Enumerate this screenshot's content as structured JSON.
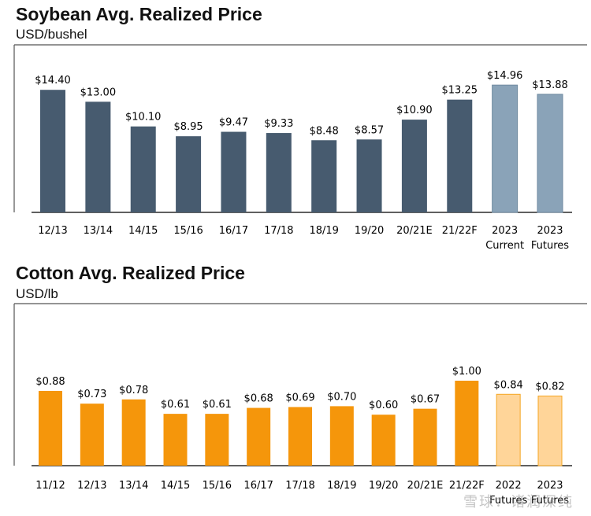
{
  "charts_meta": {
    "soy_color": "#475b6f",
    "soy_future_color": "#8aa3b8",
    "cotton_color": "#f5960b",
    "cotton_future_color": "#ffd599",
    "frame_color": "#555555"
  },
  "watermark": "雪球：诸润深纯",
  "chart_data": [
    {
      "type": "bar",
      "title": "Soybean Avg. Realized Price",
      "subtitle": "USD/bushel",
      "categories": [
        "12/13",
        "13/14",
        "14/15",
        "15/16",
        "16/17",
        "17/18",
        "18/19",
        "19/20",
        "20/21E",
        "21/22F",
        "2023",
        "2023"
      ],
      "values": [
        14.4,
        13.0,
        10.1,
        8.95,
        9.47,
        9.33,
        8.48,
        8.57,
        10.9,
        13.25,
        14.96,
        13.88
      ],
      "labels": [
        "$14.40",
        "$13.00",
        "$10.10",
        "$8.95",
        "$9.47",
        "$9.33",
        "$8.48",
        "$8.57",
        "$10.90",
        "$13.25",
        "$14.96",
        "$13.88"
      ],
      "future": [
        false,
        false,
        false,
        false,
        false,
        false,
        false,
        false,
        false,
        false,
        true,
        true
      ],
      "sublabels": [
        "",
        "",
        "",
        "",
        "",
        "",
        "",
        "",
        "",
        "",
        "Current",
        "Futures"
      ],
      "ylim": [
        0,
        16.5
      ],
      "xlabel": "",
      "ylabel": ""
    },
    {
      "type": "bar",
      "title": "Cotton Avg. Realized Price",
      "subtitle": "USD/lb",
      "categories": [
        "11/12",
        "12/13",
        "13/14",
        "14/15",
        "15/16",
        "16/17",
        "17/18",
        "18/19",
        "19/20",
        "20/21E",
        "21/22F",
        "2022",
        "2023"
      ],
      "values": [
        0.88,
        0.73,
        0.78,
        0.61,
        0.61,
        0.68,
        0.69,
        0.7,
        0.6,
        0.67,
        1.0,
        0.84,
        0.82
      ],
      "labels": [
        "$0.88",
        "$0.73",
        "$0.78",
        "$0.61",
        "$0.61",
        "$0.68",
        "$0.69",
        "$0.70",
        "$0.60",
        "$0.67",
        "$1.00",
        "$0.84",
        "$0.82"
      ],
      "future": [
        false,
        false,
        false,
        false,
        false,
        false,
        false,
        false,
        false,
        false,
        false,
        true,
        true
      ],
      "sublabels": [
        "",
        "",
        "",
        "",
        "",
        "",
        "",
        "",
        "",
        "",
        "",
        "Futures",
        "Futures"
      ],
      "ylim": [
        0,
        1.25
      ],
      "xlabel": "",
      "ylabel": ""
    }
  ]
}
